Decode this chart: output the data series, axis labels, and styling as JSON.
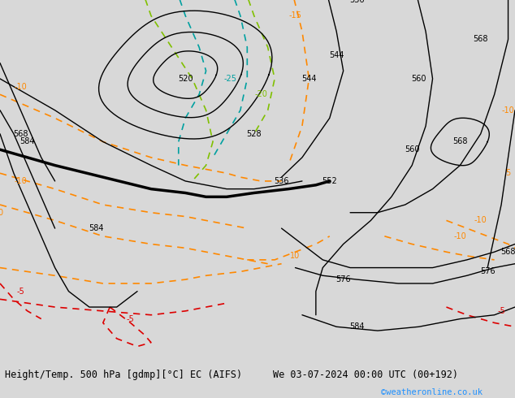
{
  "title_left": "Height/Temp. 500 hPa [gdmp][°C] EC (AIFS)",
  "title_right": "We 03-07-2024 00:00 UTC (00+192)",
  "copyright": "©weatheronline.co.uk",
  "background_land": "#c8e6a0",
  "background_sea": "#d8d8d8",
  "background_fig": "#d8d8d8",
  "contour_color_height": "#000000",
  "contour_color_temp_orange": "#ff8800",
  "contour_color_temp_green": "#80c000",
  "contour_color_temp_teal": "#00a0a0",
  "contour_color_temp_red": "#dd0000",
  "figsize": [
    6.34,
    4.9
  ],
  "dpi": 100,
  "bottom_bar_color": "#d0d0d0",
  "bottom_text_color": "#000000",
  "copyright_color": "#1e90ff",
  "map_extent": [
    -30,
    45,
    26,
    72
  ]
}
